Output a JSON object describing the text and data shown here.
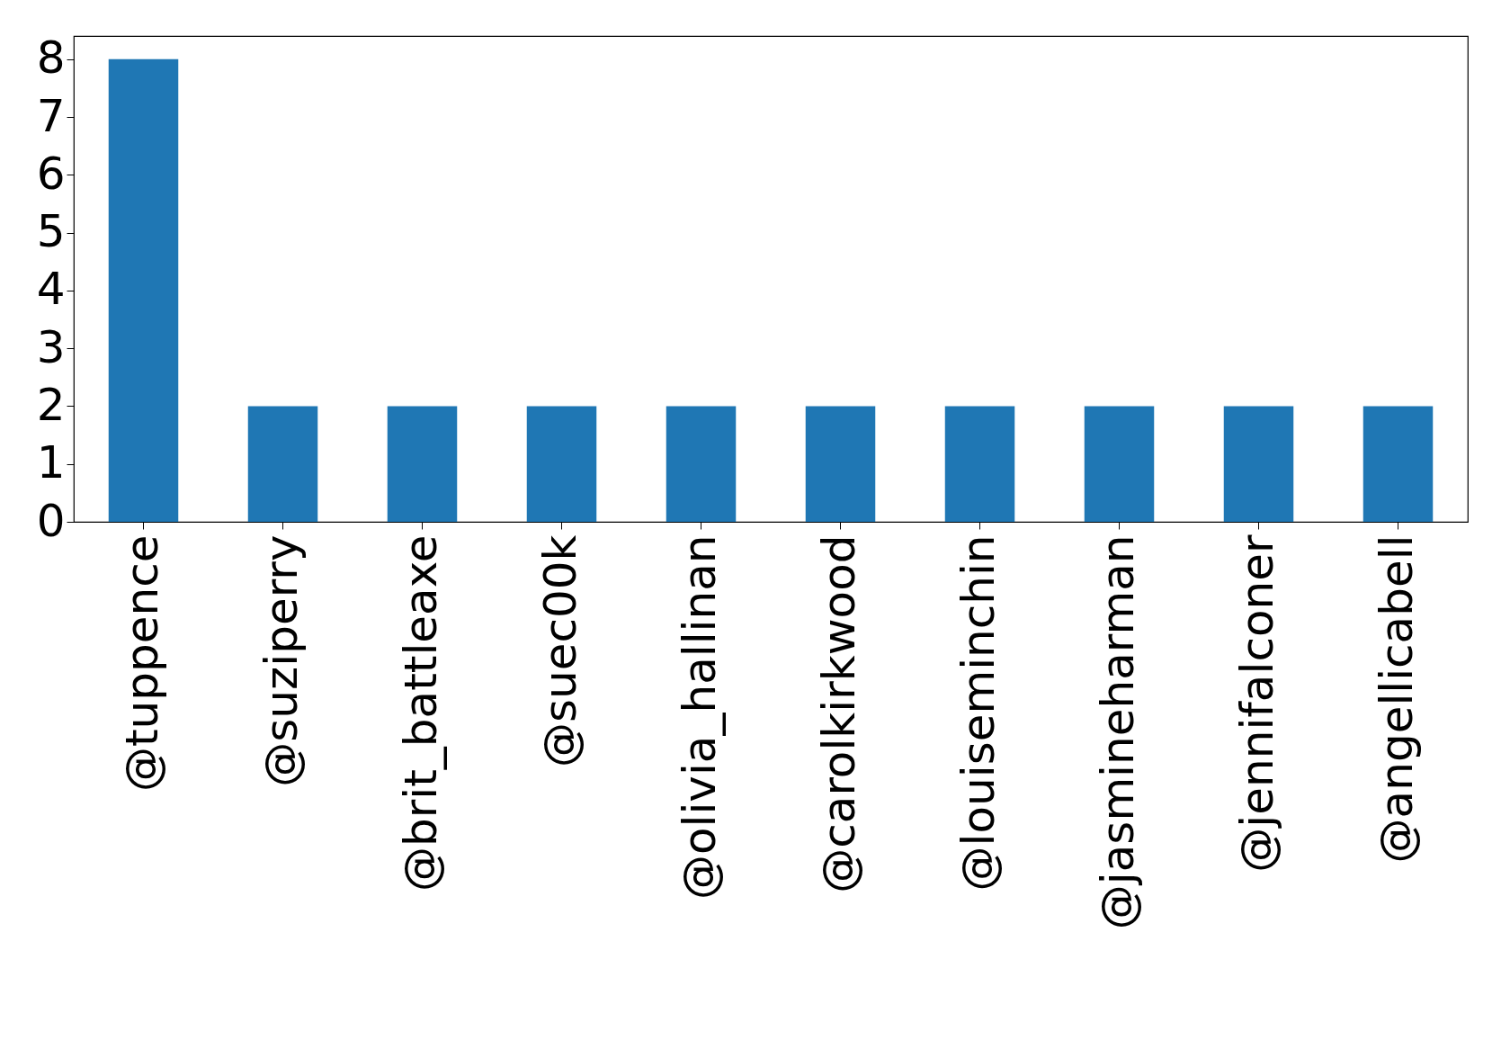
{
  "chart_data": {
    "type": "bar",
    "categories": [
      "@tuppence",
      "@suziperry",
      "@brit_battleaxe",
      "@suec00k",
      "@olivia_hallinan",
      "@carolkirkwood",
      "@louiseminchin",
      "@jasmineharman",
      "@jennifalconer",
      "@angellicabell"
    ],
    "values": [
      8,
      2,
      2,
      2,
      2,
      2,
      2,
      2,
      2,
      2
    ],
    "color": "#1f77b4",
    "ylim": [
      0,
      8.4
    ],
    "yticks": [
      0,
      1,
      2,
      3,
      4,
      5,
      6,
      7,
      8
    ],
    "grid": false
  }
}
